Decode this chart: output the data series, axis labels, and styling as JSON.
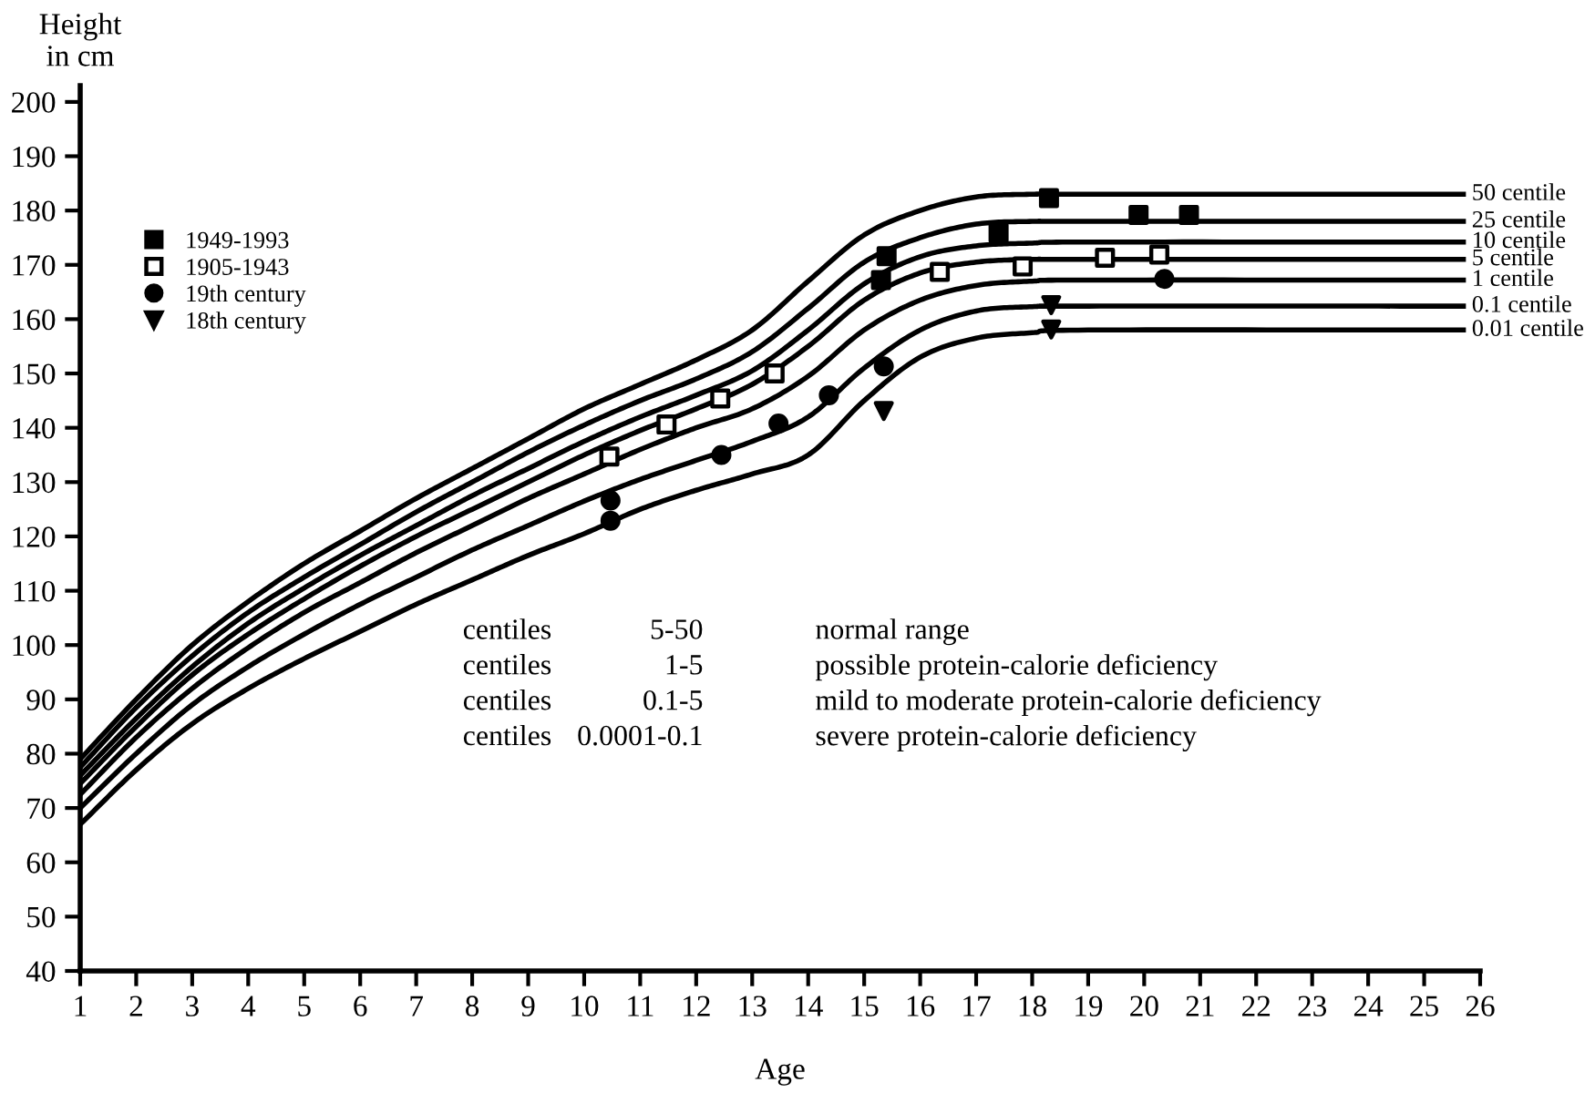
{
  "chart_data": {
    "type": "line",
    "xlabel": "Age",
    "ylabel": "Height\nin cm",
    "xlim": [
      1,
      26
    ],
    "xticks": [
      1,
      2,
      3,
      4,
      5,
      6,
      7,
      8,
      9,
      10,
      11,
      12,
      13,
      14,
      15,
      16,
      17,
      18,
      19,
      20,
      21,
      22,
      23,
      24,
      25,
      26
    ],
    "ylim": [
      40,
      203
    ],
    "yticks": [
      40,
      50,
      60,
      70,
      80,
      90,
      100,
      110,
      120,
      130,
      140,
      150,
      160,
      170,
      180,
      190,
      200
    ],
    "x": [
      1,
      2,
      3,
      4,
      5,
      6,
      7,
      8,
      9,
      10,
      11,
      12,
      13,
      14,
      15,
      16,
      17,
      18,
      19,
      25.7
    ],
    "grid": false,
    "legend": "top left",
    "marker": "none",
    "line_style": "solid",
    "series": [
      {
        "name": "50 centile",
        "color": "#000000",
        "values": [
          79,
          90,
          100,
          108,
          115,
          121,
          127,
          132.5,
          138,
          143.5,
          148,
          152.5,
          158,
          167,
          175.5,
          180,
          182.5,
          183,
          183,
          183
        ]
      },
      {
        "name": "25 centile",
        "color": "#000000",
        "values": [
          77.5,
          88.5,
          98,
          106,
          112.5,
          118.5,
          124.5,
          130,
          135.5,
          140.5,
          145,
          149,
          154,
          162,
          170.5,
          175,
          177.5,
          178,
          178,
          178
        ]
      },
      {
        "name": "10 centile",
        "color": "#000000",
        "values": [
          76,
          86.5,
          96,
          104,
          110.5,
          116.5,
          122,
          127.5,
          132.5,
          137.5,
          142,
          146,
          150.5,
          158,
          166.5,
          171.5,
          173.5,
          174,
          174.2,
          174.2
        ]
      },
      {
        "name": "5 centile",
        "color": "#000000",
        "values": [
          74.5,
          85,
          94.5,
          102,
          108.5,
          114.5,
          120,
          125,
          130,
          135,
          139.5,
          143.5,
          148,
          155,
          163.5,
          168.5,
          170.5,
          171,
          171,
          171
        ]
      },
      {
        "name": "1 centile",
        "color": "#000000",
        "values": [
          72.5,
          83,
          92,
          99.5,
          106,
          111.5,
          117,
          122,
          127,
          131.5,
          136,
          140,
          143.5,
          149.5,
          158,
          163.5,
          166.2,
          167,
          167.2,
          167.2
        ]
      },
      {
        "name": "0.1 centile",
        "color": "#000000",
        "values": [
          70,
          80,
          89,
          96,
          102,
          107.5,
          112.5,
          117.5,
          122,
          126.5,
          130.5,
          134,
          137.5,
          142,
          151,
          158,
          161.5,
          162.3,
          162.4,
          162.4
        ]
      },
      {
        "name": "0.01 centile",
        "color": "#000000",
        "values": [
          67,
          77,
          85.5,
          92,
          97.5,
          102.5,
          107.5,
          112,
          116.5,
          120.5,
          125,
          128.5,
          131.5,
          135,
          145,
          153,
          156.5,
          157.5,
          158,
          158
        ]
      },
      {
        "name": "1949-1993",
        "type": "scatter",
        "marker": "square",
        "color": "#000000",
        "x": [
          15.4,
          15.3,
          17.4,
          18.3,
          19.9,
          20.8
        ],
        "values": [
          171.6,
          167.2,
          175.9,
          182.3,
          179.2,
          179.2
        ]
      },
      {
        "name": "1905-1943",
        "type": "scatter",
        "marker": "square",
        "color": "#ffffff",
        "x": [
          10.45,
          11.47,
          12.43,
          13.4,
          16.35,
          17.83,
          19.3,
          20.27
        ],
        "values": [
          134.7,
          140.6,
          145.4,
          150,
          168.7,
          169.7,
          171.3,
          171.9
        ]
      },
      {
        "name": "19th century",
        "type": "scatter",
        "marker": "circle",
        "color": "#000000",
        "x": [
          10.47,
          10.47,
          12.45,
          13.47,
          14.37,
          15.35,
          20.36
        ],
        "values": [
          126.6,
          122.9,
          135,
          140.8,
          146,
          151.3,
          167.4
        ]
      },
      {
        "name": "18th century",
        "type": "scatter",
        "marker": "triangle",
        "color": "#000000",
        "x": [
          15.35,
          18.34,
          18.34
        ],
        "values": [
          143.1,
          162.6,
          158.1
        ]
      }
    ],
    "annotations": [
      "centiles",
      "5-50",
      "normal range",
      "centiles",
      "1-5",
      "possible protein-calorie deficiency",
      "centiles",
      "0.1-5",
      "mild to moderate protein-calorie deficiency",
      "centiles",
      "0.0001-0.1",
      "severe protein-calorie deficiency"
    ]
  }
}
